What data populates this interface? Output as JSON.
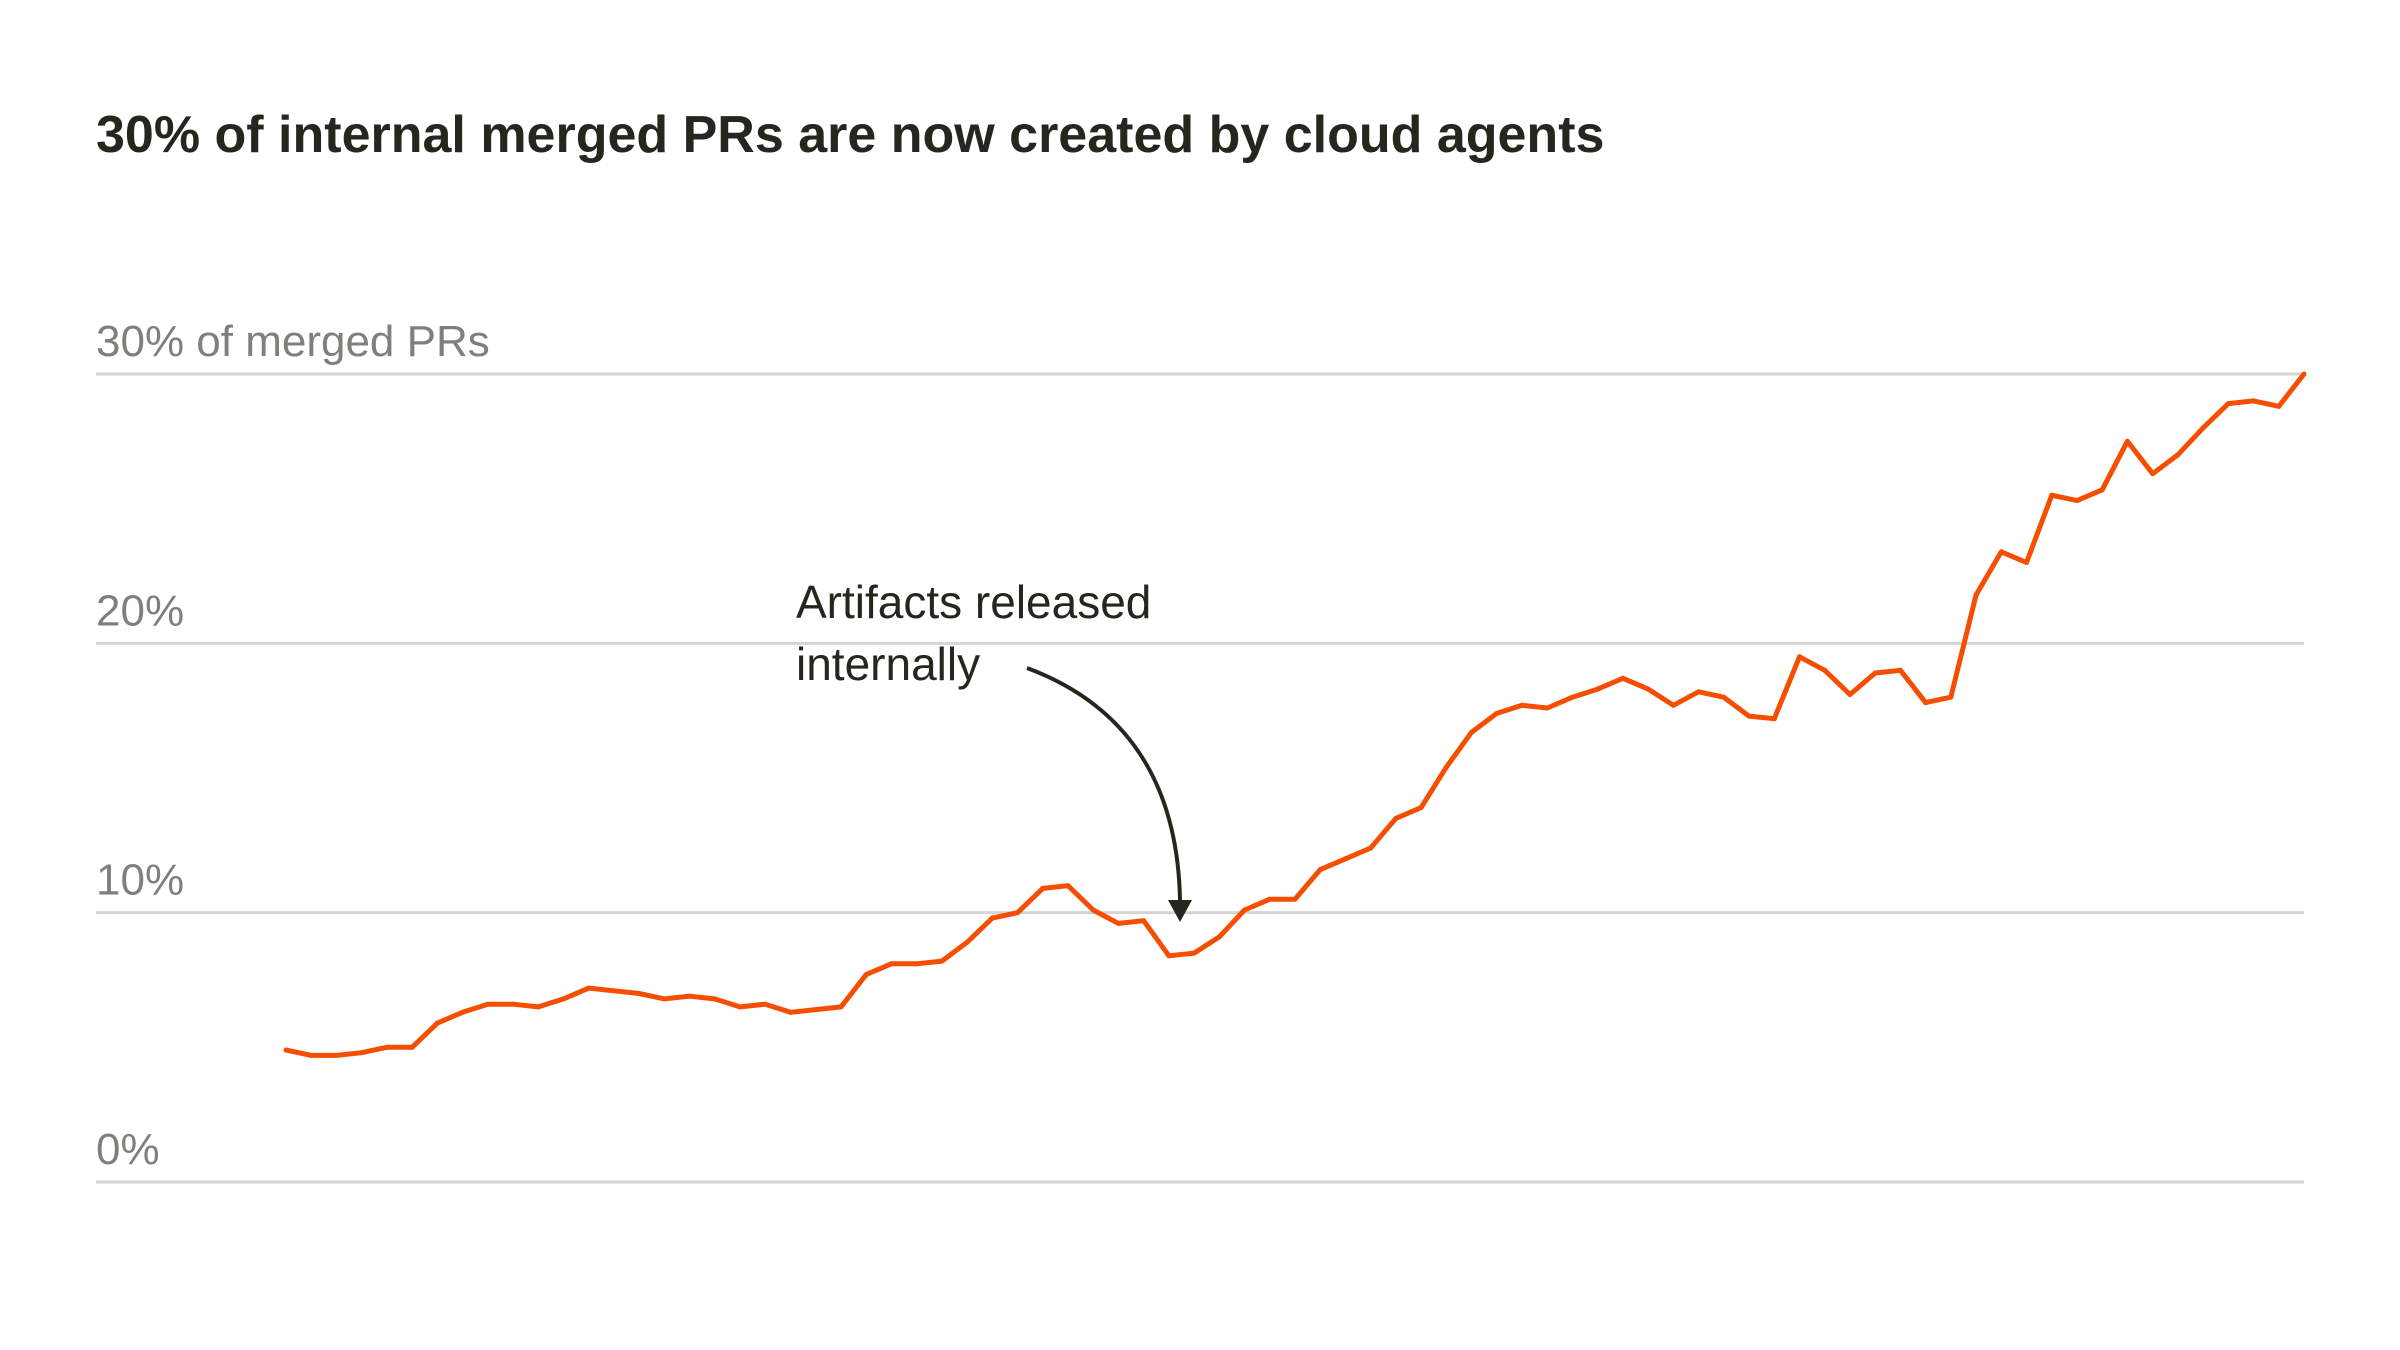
{
  "chart_data": {
    "type": "line",
    "title": "30% of internal merged PRs are now created by cloud agents",
    "xlabel": "",
    "ylabel": "",
    "ylim": [
      0,
      30
    ],
    "y_ticks": [
      {
        "value": 0,
        "label": "0%"
      },
      {
        "value": 10,
        "label": "10%"
      },
      {
        "value": 20,
        "label": "20%"
      },
      {
        "value": 30,
        "label": "30% of merged PRs"
      }
    ],
    "grid": true,
    "color": "#f54e00",
    "values": [
      4.9,
      4.7,
      4.7,
      4.8,
      5.0,
      5.0,
      5.9,
      6.3,
      6.6,
      6.6,
      6.5,
      6.8,
      7.2,
      7.1,
      7.0,
      6.8,
      6.9,
      6.8,
      6.5,
      6.6,
      6.3,
      6.4,
      6.5,
      7.7,
      8.1,
      8.1,
      8.2,
      8.9,
      9.8,
      10.0,
      10.9,
      11.0,
      10.1,
      9.6,
      9.7,
      8.4,
      8.5,
      9.1,
      10.1,
      10.5,
      10.5,
      11.6,
      12.0,
      12.4,
      13.5,
      13.9,
      15.4,
      16.7,
      17.4,
      17.7,
      17.6,
      18.0,
      18.3,
      18.7,
      18.3,
      17.7,
      18.2,
      18.0,
      17.3,
      17.2,
      19.5,
      19.0,
      18.1,
      18.9,
      19.0,
      17.8,
      18.0,
      21.8,
      23.4,
      23.0,
      25.5,
      25.3,
      25.7,
      27.5,
      26.3,
      27.0,
      28.0,
      28.9,
      29.0,
      28.8,
      30.0
    ],
    "annotations": [
      {
        "lines": [
          "Artifacts released",
          "internally"
        ],
        "point_index": 35
      }
    ]
  }
}
